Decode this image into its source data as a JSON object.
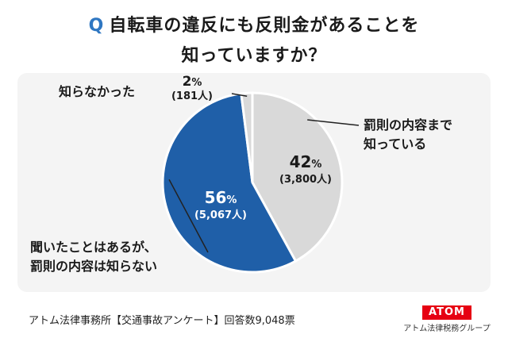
{
  "title": {
    "q_mark": "Q",
    "line1": "自転車の違反にも反則金があることを",
    "line2": "知っていますか？"
  },
  "chart_data": {
    "type": "pie",
    "slices": [
      {
        "label_lines": [
          "罰則の内容まで",
          "知っている"
        ],
        "percent": 42,
        "count_label": "(3,800人)",
        "color": "#d9d9d9"
      },
      {
        "label_lines": [
          "聞いたことはあるが、",
          "罰則の内容は知らない"
        ],
        "percent": 56,
        "count_label": "(5,067人)",
        "color": "#1f5fa8"
      },
      {
        "label_lines": [
          "知らなかった"
        ],
        "percent": 2,
        "count_label": "(181人)",
        "color": "#d9d9d9"
      }
    ],
    "percent_unit": "%"
  },
  "footer": {
    "source": "アトム法律事務所【交通事故アンケート】回答数9,048票"
  },
  "logo": {
    "text": "ATOM",
    "subtitle": "アトム法律税務グループ"
  }
}
